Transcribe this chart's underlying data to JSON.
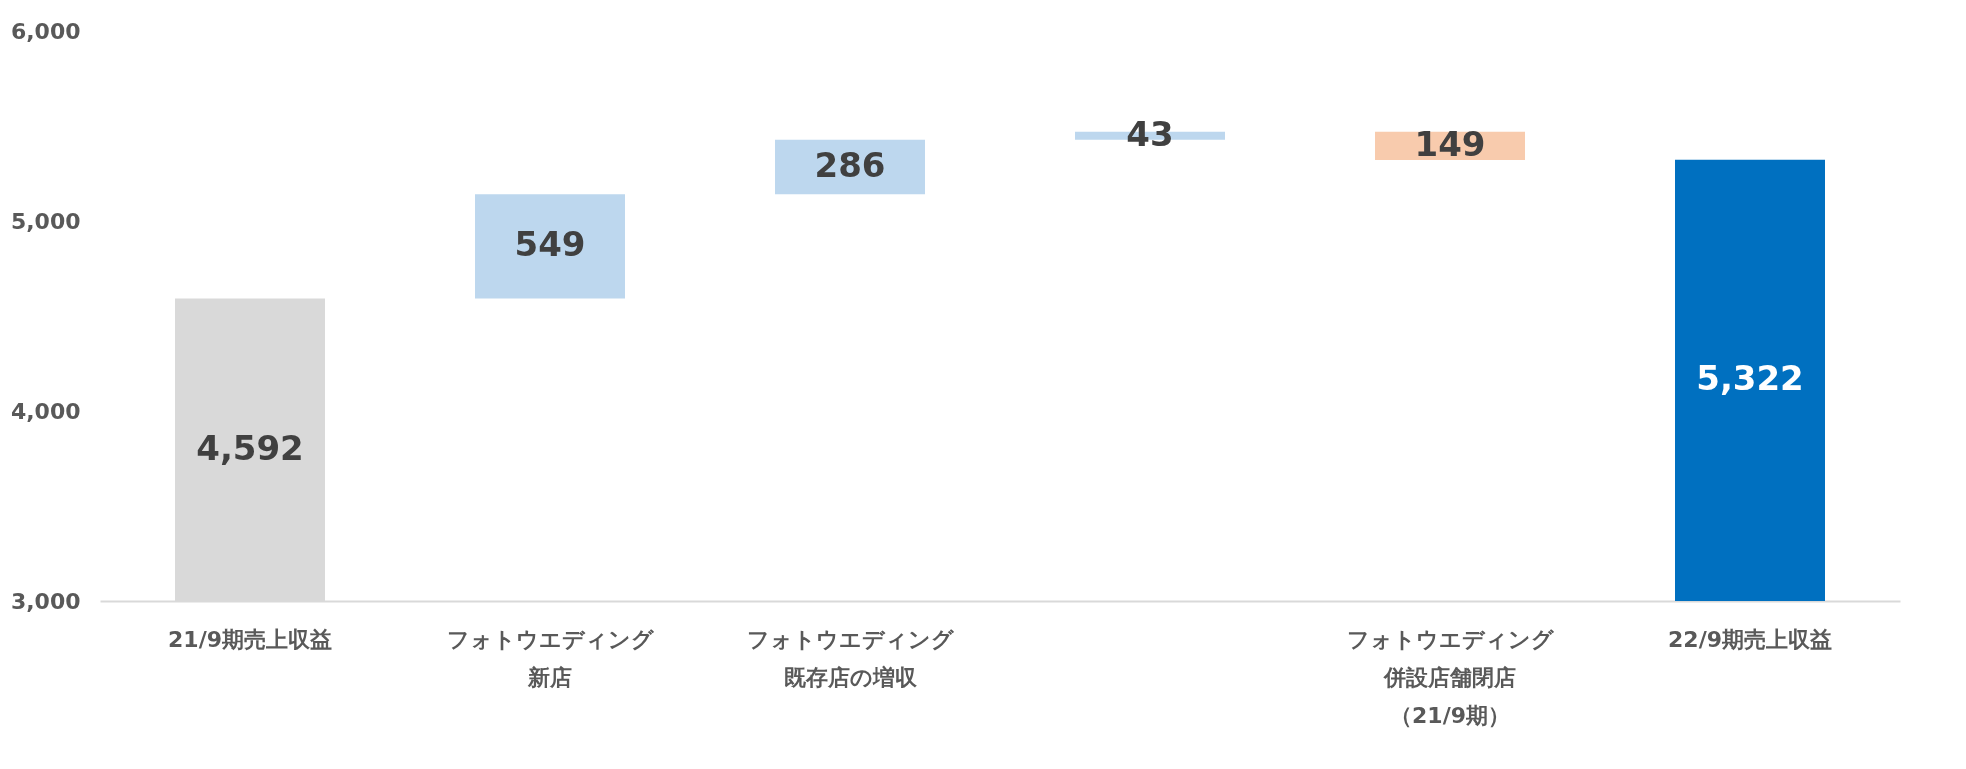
{
  "chart_data": {
    "type": "bar",
    "categories": [
      "21/9期売上収益",
      "フォトウエディング新店",
      "フォトウエディング既存店の増収",
      null,
      "フォトウエディング併設店舗閉店（21/9期）",
      "22/9期売上収益"
    ],
    "values": [
      4592,
      549,
      286,
      43,
      -149,
      5322
    ],
    "base": [
      null,
      4592,
      5141,
      5427,
      5470,
      null
    ],
    "colors": [
      "#d9d9d9",
      "#bdd7ee",
      "#bdd7ee",
      "#bdd7ee",
      "#f8cbad",
      "#0070c0"
    ],
    "value_labels": [
      "4,592",
      "549",
      "286",
      "43",
      "149",
      "5,322"
    ],
    "ylim": [
      3000,
      6000
    ],
    "yticks": [
      {
        "value": 3000,
        "label": "3,000"
      },
      {
        "value": 4000,
        "label": "4,000"
      },
      {
        "value": 5000,
        "label": "5,000"
      },
      {
        "value": 6000,
        "label": "6,000"
      }
    ],
    "grid": false
  }
}
